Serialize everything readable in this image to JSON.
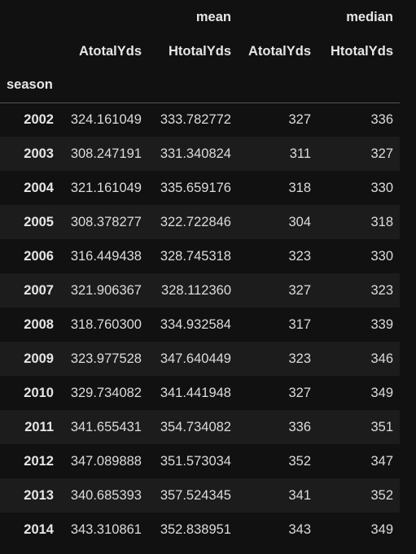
{
  "table": {
    "group_headers": [
      "",
      "",
      "mean",
      "",
      "median"
    ],
    "column_headers": [
      "",
      "AtotalYds",
      "HtotalYds",
      "AtotalYds",
      "HtotalYds"
    ],
    "index_name": "season",
    "rows": [
      {
        "season": "2002",
        "mean_a": "324.161049",
        "mean_h": "333.782772",
        "median_a": "327",
        "median_h": "336"
      },
      {
        "season": "2003",
        "mean_a": "308.247191",
        "mean_h": "331.340824",
        "median_a": "311",
        "median_h": "327"
      },
      {
        "season": "2004",
        "mean_a": "321.161049",
        "mean_h": "335.659176",
        "median_a": "318",
        "median_h": "330"
      },
      {
        "season": "2005",
        "mean_a": "308.378277",
        "mean_h": "322.722846",
        "median_a": "304",
        "median_h": "318"
      },
      {
        "season": "2006",
        "mean_a": "316.449438",
        "mean_h": "328.745318",
        "median_a": "323",
        "median_h": "330"
      },
      {
        "season": "2007",
        "mean_a": "321.906367",
        "mean_h": "328.112360",
        "median_a": "327",
        "median_h": "323"
      },
      {
        "season": "2008",
        "mean_a": "318.760300",
        "mean_h": "334.932584",
        "median_a": "317",
        "median_h": "339"
      },
      {
        "season": "2009",
        "mean_a": "323.977528",
        "mean_h": "347.640449",
        "median_a": "323",
        "median_h": "346"
      },
      {
        "season": "2010",
        "mean_a": "329.734082",
        "mean_h": "341.441948",
        "median_a": "327",
        "median_h": "349"
      },
      {
        "season": "2011",
        "mean_a": "341.655431",
        "mean_h": "354.734082",
        "median_a": "336",
        "median_h": "351"
      },
      {
        "season": "2012",
        "mean_a": "347.089888",
        "mean_h": "351.573034",
        "median_a": "352",
        "median_h": "347"
      },
      {
        "season": "2013",
        "mean_a": "340.685393",
        "mean_h": "357.524345",
        "median_a": "341",
        "median_h": "352"
      },
      {
        "season": "2014",
        "mean_a": "343.310861",
        "mean_h": "352.838951",
        "median_a": "343",
        "median_h": "349"
      }
    ]
  },
  "colors": {
    "background": "#111111",
    "stripe": "#1c1c1c",
    "text": "#e6e6e6",
    "divider": "#555555"
  }
}
